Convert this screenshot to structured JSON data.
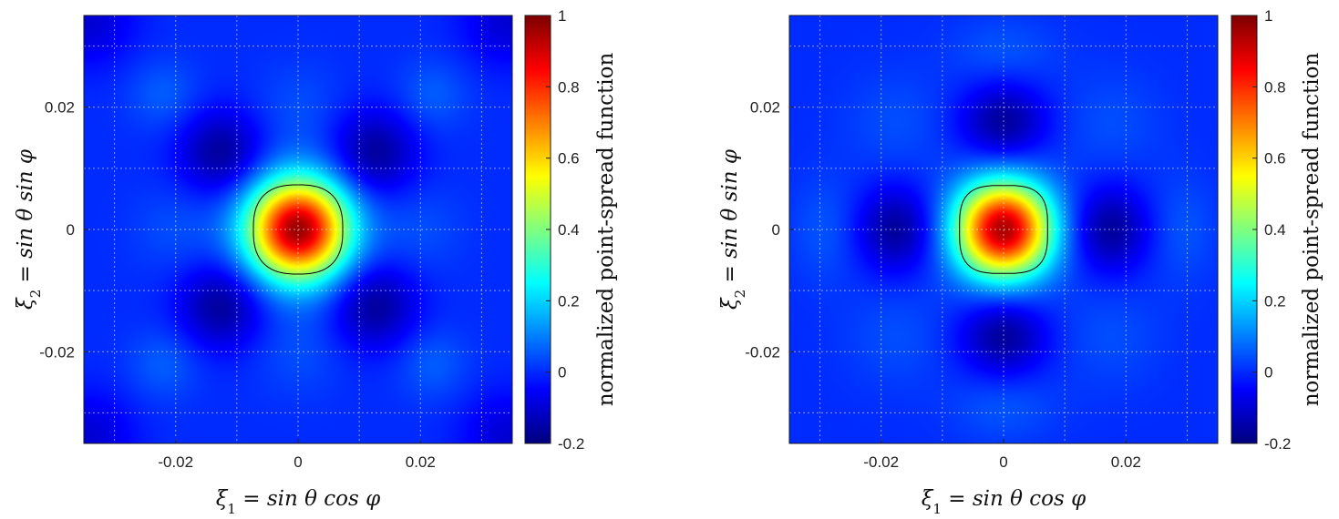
{
  "chart_data": [
    {
      "type": "heatmap",
      "title": "",
      "xlabel": "ξ1 = sin θ cos φ",
      "ylabel": "ξ2 = sin θ sin φ",
      "xlim": [
        -0.035,
        0.035
      ],
      "ylim": [
        -0.035,
        0.035
      ],
      "xticks": [
        -0.02,
        0,
        0.02
      ],
      "xtick_labels": [
        "-0.02",
        "0",
        "0.02"
      ],
      "yticks": [
        -0.02,
        0,
        0.02
      ],
      "ytick_labels": [
        "-0.02",
        "0",
        "0.02"
      ],
      "grid": true,
      "pattern": "diagonal-sidelobes",
      "colormap": "jet",
      "colorbar": {
        "label": "normalized point-spread function",
        "lim": [
          -0.2,
          1
        ],
        "ticks": [
          1,
          0.8,
          0.6,
          0.4,
          0.2,
          0,
          -0.2
        ],
        "tick_labels": [
          "1",
          "0.8",
          "0.6",
          "0.4",
          "0.2",
          "0",
          "-0.2"
        ]
      },
      "mainlobe_contour_level": 0.5,
      "mainlobe_halfwidth": 0.0073
    },
    {
      "type": "heatmap",
      "title": "",
      "xlabel": "ξ1 = sin θ cos φ",
      "ylabel": "ξ2 = sin θ sin φ",
      "xlim": [
        -0.035,
        0.035
      ],
      "ylim": [
        -0.035,
        0.035
      ],
      "xticks": [
        -0.02,
        0,
        0.02
      ],
      "xtick_labels": [
        "-0.02",
        "0",
        "0.02"
      ],
      "yticks": [
        -0.02,
        0,
        0.02
      ],
      "ytick_labels": [
        "-0.02",
        "0",
        "0.02"
      ],
      "grid": true,
      "pattern": "axis-aligned-sidelobes",
      "colormap": "jet",
      "colorbar": {
        "label": "normalized point-spread function",
        "lim": [
          -0.2,
          1
        ],
        "ticks": [
          1,
          0.8,
          0.6,
          0.4,
          0.2,
          0,
          -0.2
        ],
        "tick_labels": [
          "1",
          "0.8",
          "0.6",
          "0.4",
          "0.2",
          "0",
          "-0.2"
        ]
      },
      "mainlobe_contour_level": 0.5,
      "mainlobe_halfwidth": 0.0072
    }
  ]
}
